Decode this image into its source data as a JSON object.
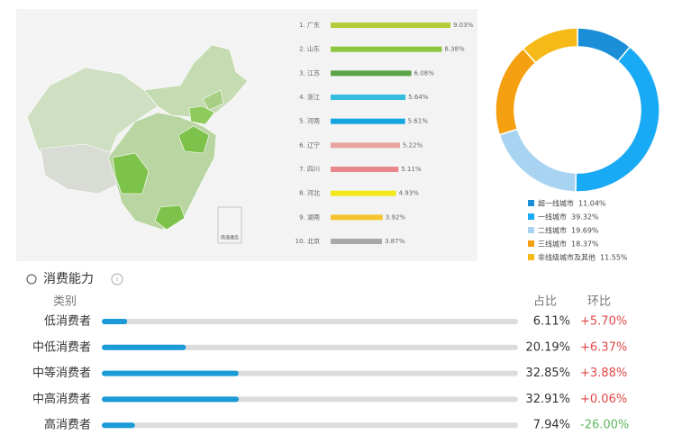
{
  "chart_data": [
    {
      "type": "bar",
      "categories": [
        "1. 广东",
        "2. 山东",
        "3. 江苏",
        "4. 浙江",
        "5. 河南",
        "6. 辽宁",
        "7. 四川",
        "8. 河北",
        "9. 湖南",
        "10. 北京"
      ],
      "values": [
        9.03,
        8.38,
        6.08,
        5.64,
        5.61,
        5.22,
        5.11,
        4.93,
        3.92,
        3.87
      ],
      "value_labels": [
        "9.03%",
        "8.38%",
        "6.08%",
        "5.64%",
        "5.61%",
        "5.22%",
        "5.11%",
        "4.93%",
        "3.92%",
        "3.87%"
      ],
      "colors": [
        "#b5cc3a",
        "#8dc63f",
        "#5aa346",
        "#35bde0",
        "#14a4e0",
        "#e8a3a0",
        "#e8868a",
        "#f3e81c",
        "#f5c42c",
        "#a8a8a8"
      ]
    },
    {
      "type": "pie",
      "categories": [
        "超一线城市",
        "一线城市",
        "二线城市",
        "三线城市",
        "非线级城市及其他"
      ],
      "values": [
        11.04,
        39.32,
        19.69,
        18.37,
        11.55
      ],
      "value_labels": [
        "11.04%",
        "39.32%",
        "19.69%",
        "18.37%",
        "11.55%"
      ],
      "colors": [
        "#1a8fd8",
        "#18aaf5",
        "#a8d4f2",
        "#f5a010",
        "#f6ba18"
      ]
    }
  ],
  "map": {
    "inset_label": "南海诸岛"
  },
  "consumption": {
    "title": "消费能力",
    "columns": [
      "类别",
      "占比",
      "环比"
    ],
    "categories": [
      "低消费者",
      "中低消费者",
      "中等消费者",
      "中高消费者",
      "高消费者"
    ],
    "values": [
      6.11,
      20.19,
      32.85,
      32.91,
      7.94
    ],
    "value_labels": [
      "6.11%",
      "20.19%",
      "32.85%",
      "32.91%",
      "7.94%"
    ],
    "change_labels": [
      "+5.70%",
      "+6.37%",
      "+3.88%",
      "+0.06%",
      "-26.00%"
    ]
  }
}
